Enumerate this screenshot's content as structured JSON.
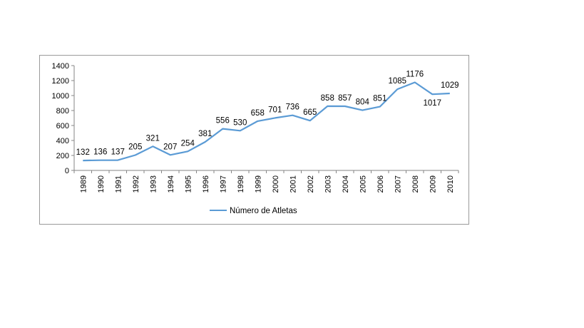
{
  "chart_data": {
    "type": "line",
    "x": [
      "1989",
      "1990",
      "1991",
      "1992",
      "1993",
      "1994",
      "1995",
      "1996",
      "1997",
      "1998",
      "1999",
      "2000",
      "2001",
      "2002",
      "2003",
      "2004",
      "2005",
      "2006",
      "2007",
      "2008",
      "2009",
      "2010"
    ],
    "series": [
      {
        "name": "Número de Atletas",
        "values": [
          132,
          136,
          137,
          205,
          321,
          207,
          254,
          381,
          556,
          530,
          658,
          701,
          736,
          665,
          858,
          857,
          804,
          851,
          1085,
          1176,
          1017,
          1029
        ],
        "color": "#5b9bd5"
      }
    ],
    "ylim": [
      0,
      1400
    ],
    "yticks": [
      "0",
      "200",
      "400",
      "600",
      "800",
      "1000",
      "1200",
      "1400"
    ],
    "grid": false,
    "legend": "bottom"
  }
}
